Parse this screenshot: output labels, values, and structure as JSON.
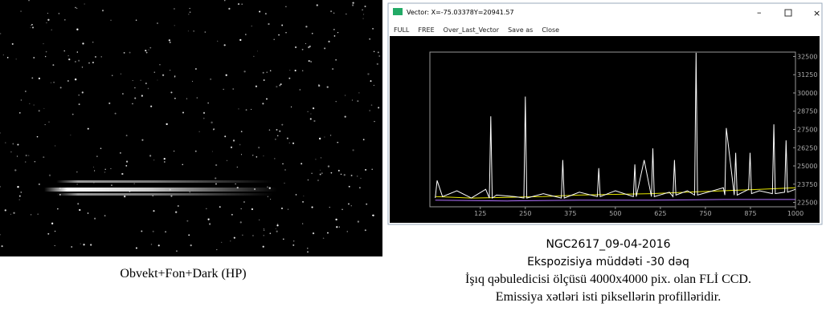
{
  "left_panel": {
    "caption": "Obvekt+Fon+Dark (HP)"
  },
  "window": {
    "title": "Vector: X=-75.03378Y=20941.57",
    "menu": [
      "FULL",
      "FREE",
      "Over_Last_Vector",
      "Save as",
      "Close"
    ],
    "plot": {
      "xlim": [
        -15,
        1000
      ],
      "ylim": [
        22200,
        32800
      ],
      "xticks": [
        125,
        250,
        375,
        500,
        625,
        750,
        875,
        1000
      ],
      "yticks": [
        22500,
        23750,
        25000,
        26250,
        27500,
        28750,
        30000,
        31250,
        32500
      ],
      "series": [
        {
          "color": "#e6e600",
          "x": [
            0,
            100,
            200,
            300,
            400,
            500,
            600,
            700,
            800,
            900,
            1000
          ],
          "values": [
            22900,
            22800,
            22850,
            22900,
            23000,
            23050,
            23100,
            23200,
            23300,
            23400,
            23500
          ]
        },
        {
          "color": "#b070ff",
          "x": [
            0,
            200,
            400,
            600,
            800,
            1000
          ],
          "values": [
            22650,
            22600,
            22650,
            22650,
            22700,
            22700
          ]
        },
        {
          "color": "#ffffff",
          "x": [
            0,
            5,
            20,
            60,
            100,
            140,
            150,
            154,
            158,
            170,
            220,
            246,
            250,
            254,
            300,
            350,
            354,
            358,
            400,
            450,
            454,
            458,
            500,
            550,
            554,
            558,
            580,
            600,
            604,
            608,
            650,
            660,
            664,
            668,
            700,
            720,
            724,
            728,
            800,
            804,
            808,
            830,
            834,
            838,
            870,
            874,
            878,
            900,
            936,
            940,
            944,
            970,
            974,
            978,
            1000
          ],
          "values": [
            22800,
            24000,
            22900,
            23300,
            22800,
            23400,
            22800,
            28400,
            22800,
            23000,
            22900,
            22800,
            29750,
            22800,
            23100,
            22800,
            25400,
            22800,
            23200,
            22900,
            24850,
            22900,
            23300,
            22900,
            25100,
            22900,
            25400,
            22900,
            26200,
            22900,
            23200,
            22900,
            25400,
            23000,
            23300,
            23000,
            32750,
            23000,
            23500,
            23000,
            27600,
            23000,
            25900,
            23000,
            23400,
            25900,
            23100,
            23300,
            23100,
            27850,
            23100,
            23200,
            26750,
            23200,
            23400
          ]
        }
      ]
    }
  },
  "caption_lines": [
    "NGC2617_09-04-2016",
    "Ekspozisiya müddəti -30 dəq",
    "İşıq qəbuledicisi ölçüsü 4000x4000 pix. olan FLİ CCD.",
    "Emissiya xətləri isti piksellərin profilləridir."
  ]
}
